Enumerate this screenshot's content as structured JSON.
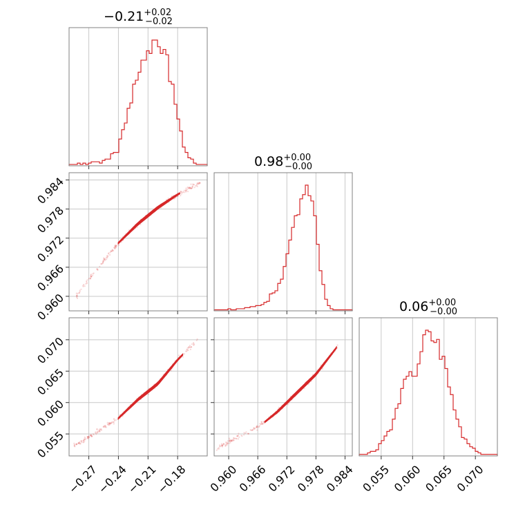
{
  "chart_data": {
    "type": "corner",
    "color": "#d62728",
    "parameters": [
      {
        "index": 0,
        "title": {
          "value": "−0.21",
          "plus": "+0.02",
          "minus": "−0.02"
        },
        "range": [
          -0.29,
          -0.15
        ],
        "ticks": [
          -0.27,
          -0.24,
          -0.21,
          -0.18
        ],
        "tick_labels": [
          "−0.27",
          "−0.24",
          "−0.21",
          "−0.18"
        ],
        "hist": {
          "type": "histogram",
          "edges_start": -0.29,
          "bin_width": 0.0028,
          "counts": [
            1,
            1,
            1,
            2,
            1,
            2,
            1,
            2,
            3,
            3,
            3,
            2,
            4,
            5,
            5,
            9,
            10,
            10,
            20,
            27,
            32,
            43,
            47,
            61,
            64,
            70,
            79,
            79,
            86,
            84,
            94,
            94,
            89,
            84,
            87,
            83,
            63,
            61,
            46,
            35,
            26,
            14,
            10,
            6,
            5,
            2,
            1,
            1,
            1,
            1
          ]
        }
      },
      {
        "index": 1,
        "title": {
          "value": "0.98",
          "plus": "+0.00",
          "minus": "−0.00"
        },
        "range": [
          0.957,
          0.9855
        ],
        "ticks": [
          0.96,
          0.966,
          0.972,
          0.978,
          0.984
        ],
        "tick_labels": [
          "0.960",
          "0.966",
          "0.972",
          "0.978",
          "0.984"
        ],
        "hist": {
          "type": "histogram",
          "edges_start": 0.957,
          "bin_width": 0.00057,
          "counts": [
            1,
            1,
            1,
            1,
            1,
            2,
            1,
            1,
            2,
            2,
            2,
            3,
            3,
            4,
            4,
            5,
            5,
            6,
            8,
            9,
            16,
            17,
            19,
            26,
            30,
            42,
            54,
            67,
            79,
            90,
            91,
            106,
            110,
            119,
            109,
            104,
            90,
            63,
            38,
            25,
            11,
            5,
            2,
            1,
            1,
            1,
            1,
            1,
            1,
            1
          ]
        }
      },
      {
        "index": 2,
        "title": {
          "value": "0.06",
          "plus": "+0.00",
          "minus": "−0.00"
        },
        "range": [
          0.0515,
          0.0735
        ],
        "ticks": [
          0.055,
          0.06,
          0.065,
          0.07
        ],
        "tick_labels": [
          "0.055",
          "0.060",
          "0.065",
          "0.070"
        ],
        "hist": {
          "type": "histogram",
          "edges_start": 0.0515,
          "bin_width": 0.00044,
          "counts": [
            1,
            1,
            1,
            2,
            3,
            3,
            4,
            8,
            10,
            13,
            16,
            17,
            24,
            31,
            34,
            44,
            50,
            52,
            55,
            52,
            52,
            60,
            68,
            79,
            82,
            81,
            75,
            74,
            76,
            63,
            65,
            57,
            45,
            40,
            30,
            24,
            19,
            12,
            11,
            8,
            6,
            5,
            3,
            2,
            1,
            1,
            1,
            1,
            1,
            1
          ]
        }
      }
    ],
    "pairs": [
      {
        "x_param": 0,
        "y_param": 1,
        "type": "scatter_contour",
        "correlation_line": {
          "x": [
            -0.283,
            -0.26,
            -0.24,
            -0.22,
            -0.2,
            -0.18,
            -0.157
          ],
          "y": [
            0.96,
            0.966,
            0.971,
            0.975,
            0.9783,
            0.981,
            0.9835
          ]
        },
        "contour_width": [
          0.0009,
          0.0005
        ],
        "core": [
          -0.24,
          -0.178
        ]
      },
      {
        "x_param": 0,
        "y_param": 2,
        "type": "scatter_contour",
        "correlation_line": {
          "x": [
            -0.285,
            -0.26,
            -0.24,
            -0.22,
            -0.2,
            -0.18,
            -0.16
          ],
          "y": [
            0.053,
            0.0555,
            0.0575,
            0.0605,
            0.063,
            0.0668,
            0.07
          ]
        },
        "contour_width": [
          0.0009,
          0.0005
        ],
        "core": [
          -0.24,
          -0.175
        ]
      },
      {
        "x_param": 1,
        "y_param": 2,
        "type": "scatter_contour",
        "correlation_line": {
          "x": [
            0.9575,
            0.962,
            0.966,
            0.97,
            0.974,
            0.978,
            0.9825
          ],
          "y": [
            0.0527,
            0.0545,
            0.056,
            0.0585,
            0.0615,
            0.0645,
            0.069
          ]
        },
        "contour_width": [
          0.0009,
          0.0005
        ],
        "core": [
          0.9675,
          0.9822
        ]
      }
    ]
  }
}
